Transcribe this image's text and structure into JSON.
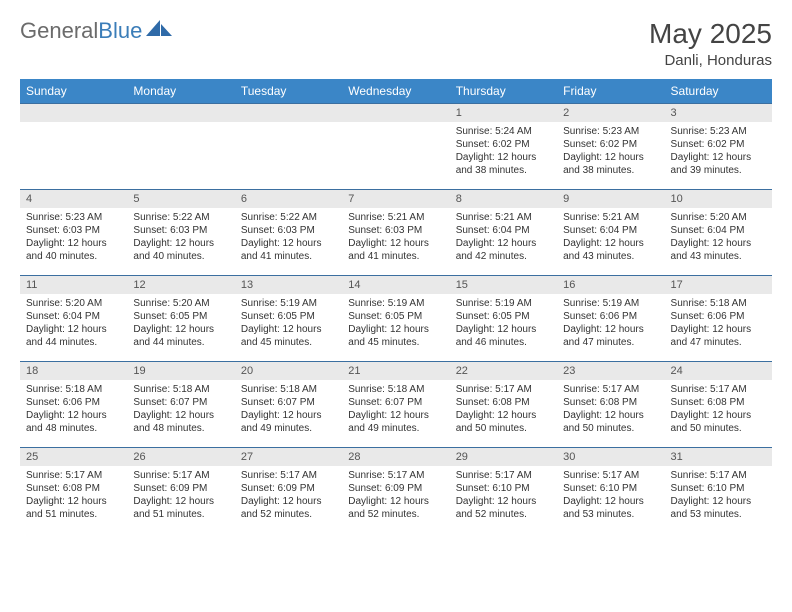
{
  "brand": {
    "part1": "General",
    "part2": "Blue"
  },
  "title": "May 2025",
  "location": "Danli, Honduras",
  "colors": {
    "header_bg": "#3b86c7",
    "header_text": "#ffffff",
    "daynum_bg": "#e9e9e9",
    "row_border": "#3b6fa0",
    "body_text": "#333333",
    "title_text": "#444444",
    "brand_gray": "#6b6b6b",
    "brand_blue": "#3b7db8"
  },
  "day_headers": [
    "Sunday",
    "Monday",
    "Tuesday",
    "Wednesday",
    "Thursday",
    "Friday",
    "Saturday"
  ],
  "weeks": [
    {
      "nums": [
        "",
        "",
        "",
        "",
        "1",
        "2",
        "3"
      ],
      "cells": [
        null,
        null,
        null,
        null,
        {
          "sunrise": "5:24 AM",
          "sunset": "6:02 PM",
          "daylight": "12 hours and 38 minutes."
        },
        {
          "sunrise": "5:23 AM",
          "sunset": "6:02 PM",
          "daylight": "12 hours and 38 minutes."
        },
        {
          "sunrise": "5:23 AM",
          "sunset": "6:02 PM",
          "daylight": "12 hours and 39 minutes."
        }
      ]
    },
    {
      "nums": [
        "4",
        "5",
        "6",
        "7",
        "8",
        "9",
        "10"
      ],
      "cells": [
        {
          "sunrise": "5:23 AM",
          "sunset": "6:03 PM",
          "daylight": "12 hours and 40 minutes."
        },
        {
          "sunrise": "5:22 AM",
          "sunset": "6:03 PM",
          "daylight": "12 hours and 40 minutes."
        },
        {
          "sunrise": "5:22 AM",
          "sunset": "6:03 PM",
          "daylight": "12 hours and 41 minutes."
        },
        {
          "sunrise": "5:21 AM",
          "sunset": "6:03 PM",
          "daylight": "12 hours and 41 minutes."
        },
        {
          "sunrise": "5:21 AM",
          "sunset": "6:04 PM",
          "daylight": "12 hours and 42 minutes."
        },
        {
          "sunrise": "5:21 AM",
          "sunset": "6:04 PM",
          "daylight": "12 hours and 43 minutes."
        },
        {
          "sunrise": "5:20 AM",
          "sunset": "6:04 PM",
          "daylight": "12 hours and 43 minutes."
        }
      ]
    },
    {
      "nums": [
        "11",
        "12",
        "13",
        "14",
        "15",
        "16",
        "17"
      ],
      "cells": [
        {
          "sunrise": "5:20 AM",
          "sunset": "6:04 PM",
          "daylight": "12 hours and 44 minutes."
        },
        {
          "sunrise": "5:20 AM",
          "sunset": "6:05 PM",
          "daylight": "12 hours and 44 minutes."
        },
        {
          "sunrise": "5:19 AM",
          "sunset": "6:05 PM",
          "daylight": "12 hours and 45 minutes."
        },
        {
          "sunrise": "5:19 AM",
          "sunset": "6:05 PM",
          "daylight": "12 hours and 45 minutes."
        },
        {
          "sunrise": "5:19 AM",
          "sunset": "6:05 PM",
          "daylight": "12 hours and 46 minutes."
        },
        {
          "sunrise": "5:19 AM",
          "sunset": "6:06 PM",
          "daylight": "12 hours and 47 minutes."
        },
        {
          "sunrise": "5:18 AM",
          "sunset": "6:06 PM",
          "daylight": "12 hours and 47 minutes."
        }
      ]
    },
    {
      "nums": [
        "18",
        "19",
        "20",
        "21",
        "22",
        "23",
        "24"
      ],
      "cells": [
        {
          "sunrise": "5:18 AM",
          "sunset": "6:06 PM",
          "daylight": "12 hours and 48 minutes."
        },
        {
          "sunrise": "5:18 AM",
          "sunset": "6:07 PM",
          "daylight": "12 hours and 48 minutes."
        },
        {
          "sunrise": "5:18 AM",
          "sunset": "6:07 PM",
          "daylight": "12 hours and 49 minutes."
        },
        {
          "sunrise": "5:18 AM",
          "sunset": "6:07 PM",
          "daylight": "12 hours and 49 minutes."
        },
        {
          "sunrise": "5:17 AM",
          "sunset": "6:08 PM",
          "daylight": "12 hours and 50 minutes."
        },
        {
          "sunrise": "5:17 AM",
          "sunset": "6:08 PM",
          "daylight": "12 hours and 50 minutes."
        },
        {
          "sunrise": "5:17 AM",
          "sunset": "6:08 PM",
          "daylight": "12 hours and 50 minutes."
        }
      ]
    },
    {
      "nums": [
        "25",
        "26",
        "27",
        "28",
        "29",
        "30",
        "31"
      ],
      "cells": [
        {
          "sunrise": "5:17 AM",
          "sunset": "6:08 PM",
          "daylight": "12 hours and 51 minutes."
        },
        {
          "sunrise": "5:17 AM",
          "sunset": "6:09 PM",
          "daylight": "12 hours and 51 minutes."
        },
        {
          "sunrise": "5:17 AM",
          "sunset": "6:09 PM",
          "daylight": "12 hours and 52 minutes."
        },
        {
          "sunrise": "5:17 AM",
          "sunset": "6:09 PM",
          "daylight": "12 hours and 52 minutes."
        },
        {
          "sunrise": "5:17 AM",
          "sunset": "6:10 PM",
          "daylight": "12 hours and 52 minutes."
        },
        {
          "sunrise": "5:17 AM",
          "sunset": "6:10 PM",
          "daylight": "12 hours and 53 minutes."
        },
        {
          "sunrise": "5:17 AM",
          "sunset": "6:10 PM",
          "daylight": "12 hours and 53 minutes."
        }
      ]
    }
  ],
  "labels": {
    "sunrise": "Sunrise: ",
    "sunset": "Sunset: ",
    "daylight": "Daylight: "
  }
}
